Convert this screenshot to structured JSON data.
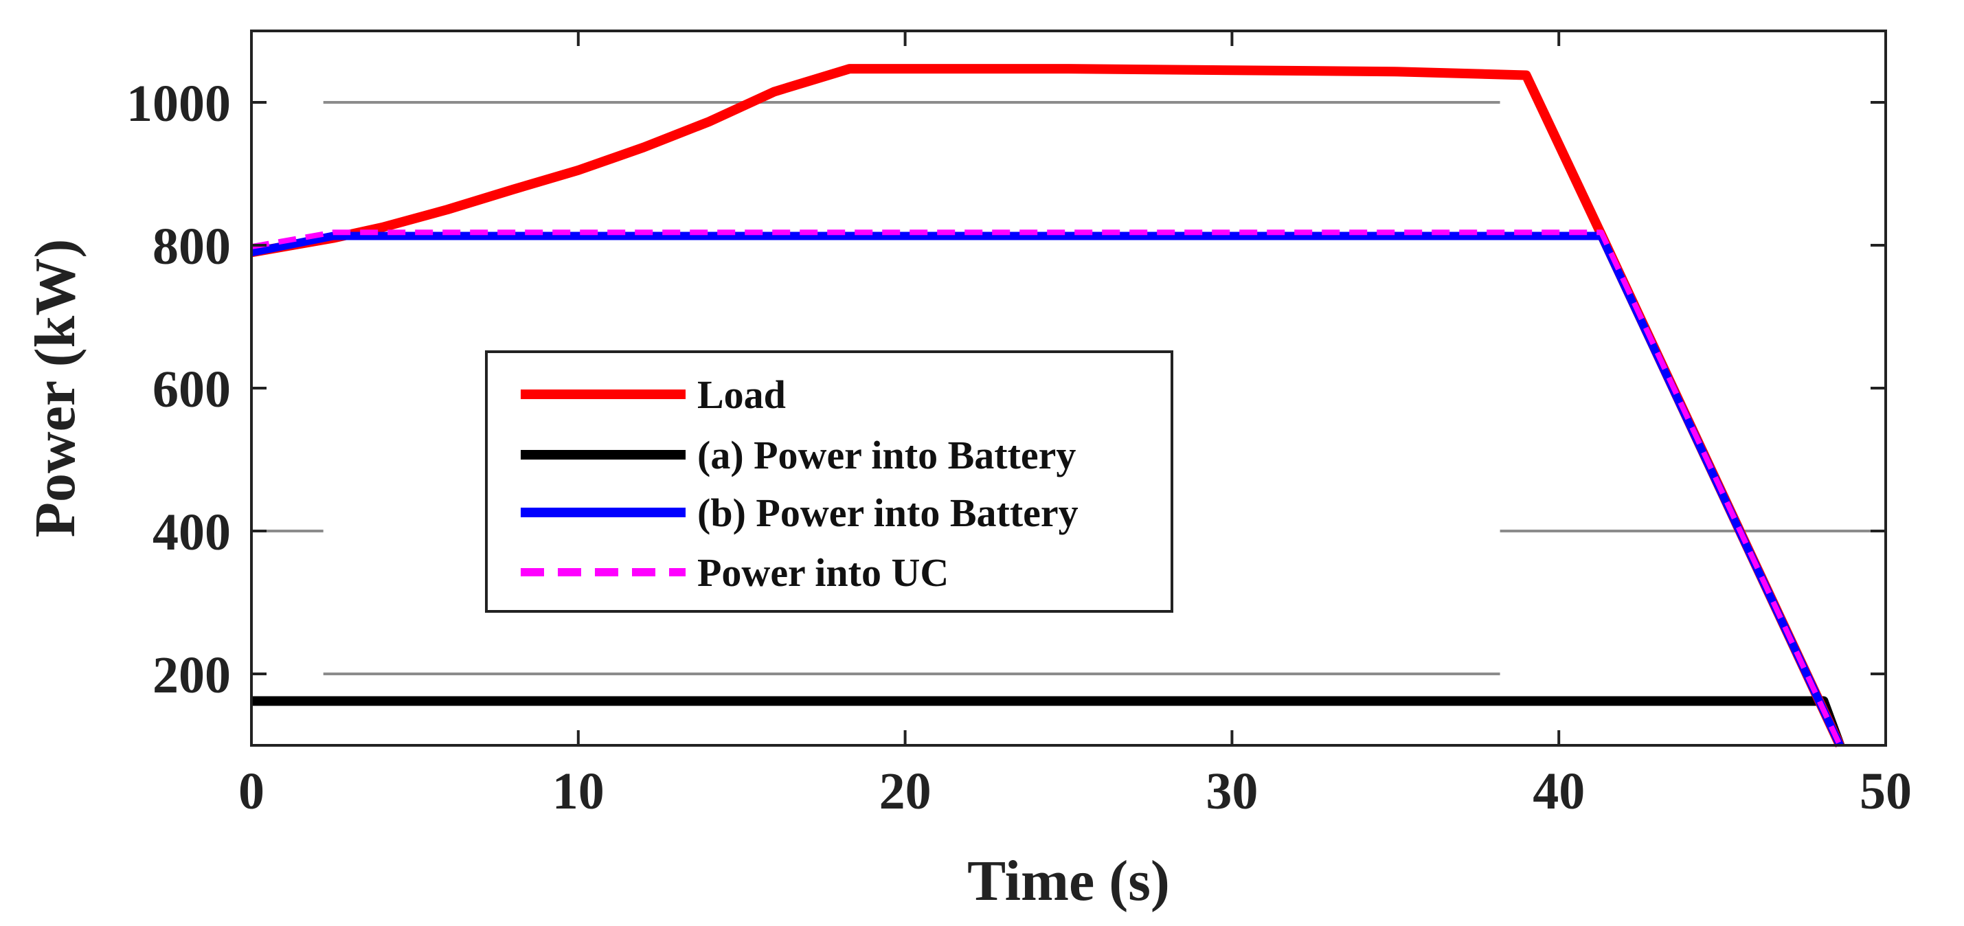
{
  "chart_data": {
    "type": "line",
    "title": "",
    "xlabel": "Time (s)",
    "ylabel": "Power (kW)",
    "xlim": [
      0,
      50
    ],
    "ylim": [
      100,
      1100
    ],
    "xticks": [
      0,
      10,
      20,
      30,
      40,
      50
    ],
    "yticks": [
      200,
      400,
      600,
      800,
      1000
    ],
    "xtick_labels": [
      "0",
      "10",
      "20",
      "30",
      "40",
      "50"
    ],
    "ytick_labels": [
      "200",
      "400",
      "600",
      "800",
      "1000"
    ],
    "grid": false,
    "legend_position": "center-left",
    "reference_lines": [
      {
        "y": 1000,
        "x": [
          2.2,
          38.2
        ]
      },
      {
        "y": 400,
        "x": [
          0,
          2.2
        ]
      },
      {
        "y": 400,
        "x": [
          38.2,
          50
        ]
      },
      {
        "y": 200,
        "x": [
          2.2,
          38.2
        ]
      }
    ],
    "series": [
      {
        "name": "Load",
        "color": "#ff0000",
        "style": "solid",
        "x": [
          0,
          2.5,
          4,
          6,
          8,
          10,
          12,
          14,
          16,
          18.3,
          25,
          30,
          35,
          39,
          41.3,
          48.6
        ],
        "y": [
          790,
          810,
          825,
          850,
          878,
          905,
          937,
          973,
          1015,
          1047,
          1047,
          1045,
          1043,
          1038,
          815,
          100
        ]
      },
      {
        "name": "(a) Power into Battery",
        "color": "#000000",
        "style": "solid",
        "x": [
          0,
          48.1,
          48.6
        ],
        "y": [
          162,
          162,
          100
        ]
      },
      {
        "name": "(b) Power into Battery",
        "color": "#0000ff",
        "style": "solid",
        "x": [
          0,
          2.5,
          41.3,
          48.6
        ],
        "y": [
          790,
          813,
          813,
          100
        ]
      },
      {
        "name": "Power into UC",
        "color": "#ff00ff",
        "style": "dashed",
        "x": [
          0,
          2.5,
          41.3,
          48.6
        ],
        "y": [
          798,
          818,
          818,
          100
        ]
      }
    ]
  }
}
